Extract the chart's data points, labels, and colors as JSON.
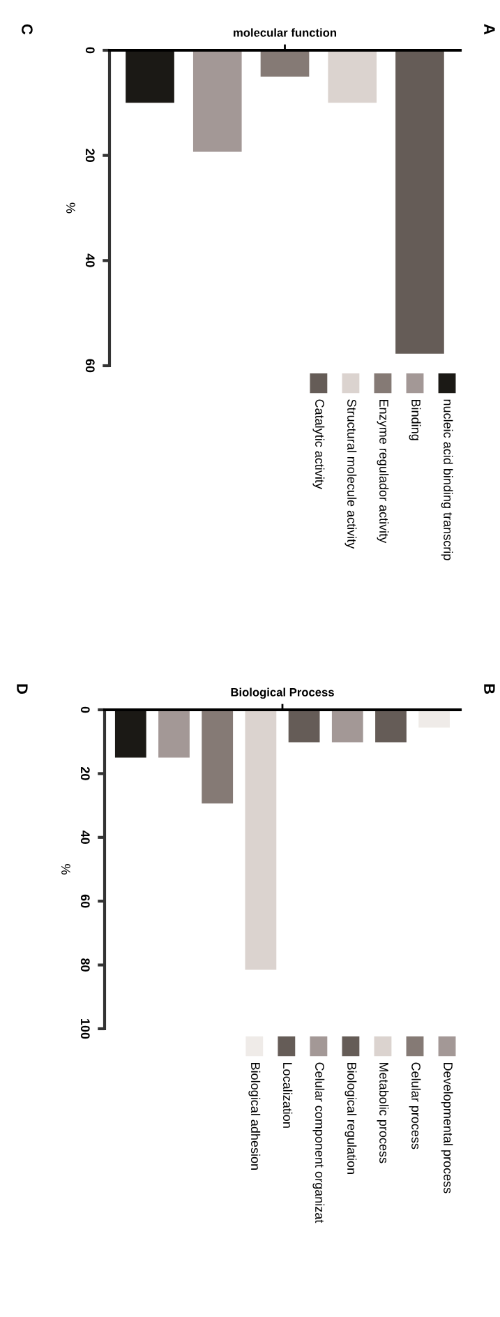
{
  "chart_data": [
    {
      "type": "bar",
      "title": "molecular function",
      "ylabel": "%",
      "annotations": [
        "A",
        "C"
      ],
      "categories": [
        null,
        null,
        null,
        null,
        null
      ],
      "series": [
        {
          "name": "nucleic acid binding transcrip",
          "color": "#1b1915",
          "values": [
            10,
            null,
            null,
            null,
            null
          ]
        },
        {
          "name": "Binding",
          "color": "#a39896",
          "values": [
            null,
            19.3,
            null,
            null,
            null
          ]
        },
        {
          "name": "Enzyme regulador activity",
          "color": "#857a75",
          "values": [
            null,
            null,
            5,
            null,
            null
          ]
        },
        {
          "name": "Structural molecule activity",
          "color": "#dbd3cf",
          "values": [
            null,
            null,
            null,
            10,
            null
          ]
        },
        {
          "name": "Catalytic activity",
          "color": "#655c57",
          "values": [
            null,
            null,
            null,
            null,
            57.7
          ]
        }
      ],
      "ylim": [
        60,
        0
      ],
      "yticks": [
        0,
        20,
        40,
        60
      ],
      "legend": "bottom right",
      "grid": false
    },
    {
      "type": "bar",
      "title": "Biological Process",
      "ylabel": "%",
      "annotations": [
        "B",
        "D"
      ],
      "categories": [
        null,
        null,
        null,
        null,
        null,
        null,
        null,
        null
      ],
      "series": [
        {
          "color": "#1b1915",
          "values": [
            15,
            null,
            null,
            null,
            null,
            null,
            null,
            null
          ]
        },
        {
          "name": "Developmental process",
          "color": "#a39896",
          "values": [
            null,
            15,
            null,
            null,
            null,
            null,
            null,
            null
          ]
        },
        {
          "name": "Celular process",
          "color": "#857a75",
          "values": [
            null,
            null,
            29.4,
            null,
            null,
            null,
            null,
            null
          ]
        },
        {
          "name": "Metabolic process",
          "color": "#dbd3cf",
          "values": [
            null,
            null,
            null,
            81.5,
            null,
            null,
            null,
            null
          ]
        },
        {
          "name": "Biological regulation",
          "color": "#655c57",
          "values": [
            null,
            null,
            null,
            null,
            10.2,
            null,
            null,
            null
          ]
        },
        {
          "name": "Celular component organizat",
          "color": "#a39896",
          "values": [
            null,
            null,
            null,
            null,
            null,
            10.2,
            null,
            null
          ]
        },
        {
          "name": "Localization",
          "color": "#655c57",
          "values": [
            null,
            null,
            null,
            null,
            null,
            null,
            10.2,
            null
          ]
        },
        {
          "name": "Biological adhesion",
          "color": "#efebe8",
          "values": [
            null,
            null,
            null,
            null,
            null,
            null,
            null,
            5.6
          ]
        }
      ],
      "ylim": [
        100,
        0
      ],
      "yticks": [
        0,
        20,
        40,
        60,
        80,
        100
      ],
      "legend": "bottom right",
      "grid": false
    }
  ]
}
